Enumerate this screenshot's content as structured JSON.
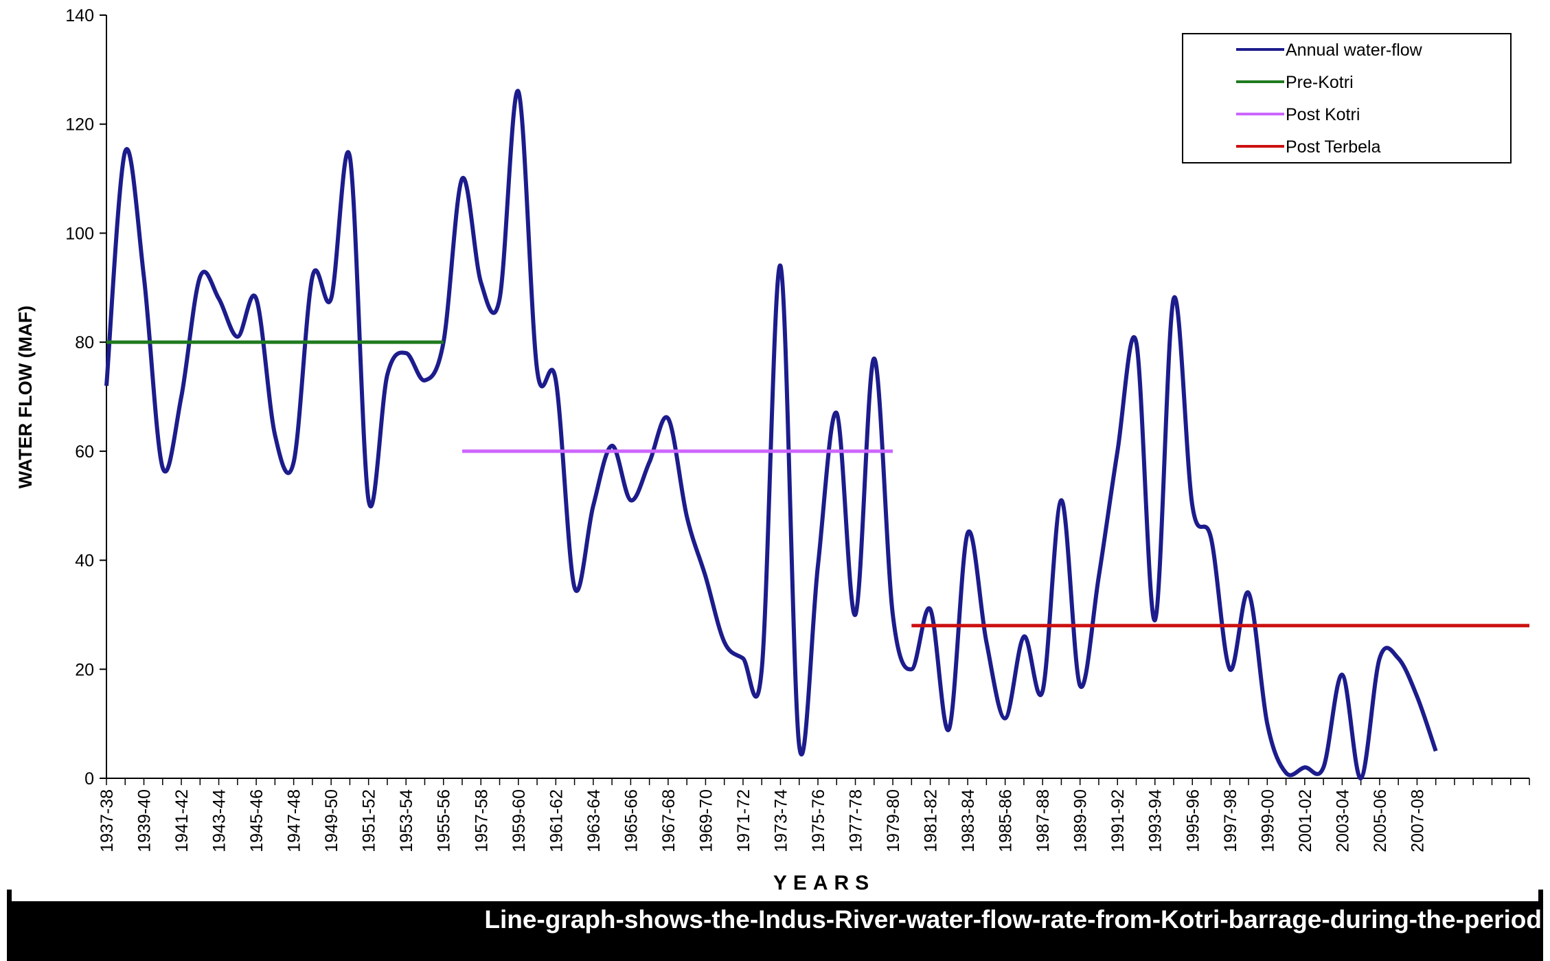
{
  "caption": "Line-graph-shows-the-Indus-River-water-flow-rate-from-Kotri-barrage-during-the-period",
  "chart_data": {
    "type": "line",
    "title": "",
    "xlabel": "YEARS",
    "ylabel": "WATER FLOW (MAF)",
    "ylim": [
      0,
      140
    ],
    "yticks": [
      0,
      20,
      40,
      60,
      80,
      100,
      120,
      140
    ],
    "grid": false,
    "legend_position": "top-right",
    "x_tick_labels": [
      "1937-38",
      "1939-40",
      "1941-42",
      "1943-44",
      "1945-46",
      "1947-48",
      "1949-50",
      "1951-52",
      "1953-54",
      "1955-56",
      "1957-58",
      "1959-60",
      "1961-62",
      "1963-64",
      "1965-66",
      "1967-68",
      "1969-70",
      "1971-72",
      "1973-74",
      "1975-76",
      "1977-78",
      "1979-80",
      "1981-82",
      "1983-84",
      "1985-86",
      "1987-88",
      "1989-90",
      "1991-92",
      "1993-94",
      "1995-96",
      "1997-98",
      "1999-00",
      "2001-02",
      "2003-04",
      "2005-06",
      "2007-08"
    ],
    "series": [
      {
        "name": "Annual water-flow",
        "color": "#1c1c8c",
        "x_start": 1937,
        "values": [
          72,
          115,
          92,
          57,
          70,
          92,
          88,
          81,
          88,
          63,
          58,
          92,
          88,
          114,
          51,
          74,
          78,
          73,
          80,
          110,
          91,
          88,
          126,
          75,
          73,
          35,
          50,
          61,
          51,
          58,
          66,
          48,
          37,
          25,
          22,
          20,
          94,
          6,
          39,
          67,
          30,
          77,
          30,
          20,
          31,
          9,
          45,
          25,
          11,
          26,
          16,
          51,
          17,
          37,
          60,
          80,
          29,
          88,
          50,
          44,
          20,
          34,
          10,
          1,
          2,
          2,
          19,
          0,
          22,
          22,
          15,
          5
        ]
      },
      {
        "name": "Pre-Kotri",
        "color": "#1f7a1f",
        "type": "hline",
        "value": 80,
        "x_from": 1937,
        "x_to": 1955
      },
      {
        "name": "Post Kotri",
        "color": "#cc66ff",
        "type": "hline",
        "value": 60,
        "x_from": 1956,
        "x_to": 1979
      },
      {
        "name": "Post Terbela",
        "color": "#cc1111",
        "type": "hline",
        "value": 28,
        "x_from": 1980,
        "x_to": 2013
      }
    ],
    "axis_labels": {
      "y_ticks": [
        "0",
        "20",
        "40",
        "60",
        "80",
        "100",
        "120",
        "140"
      ]
    }
  }
}
